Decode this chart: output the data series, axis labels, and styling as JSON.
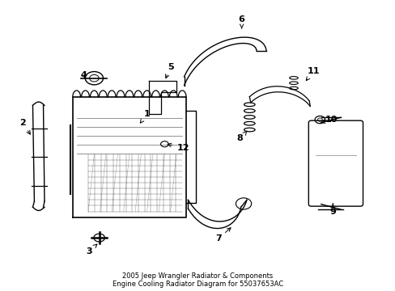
{
  "title": "2005 Jeep Wrangler Radiator & Components\nEngine Cooling Radiator Diagram for 55037653AC",
  "background_color": "#ffffff",
  "line_color": "#000000",
  "fig_width": 4.89,
  "fig_height": 3.6,
  "dpi": 100
}
